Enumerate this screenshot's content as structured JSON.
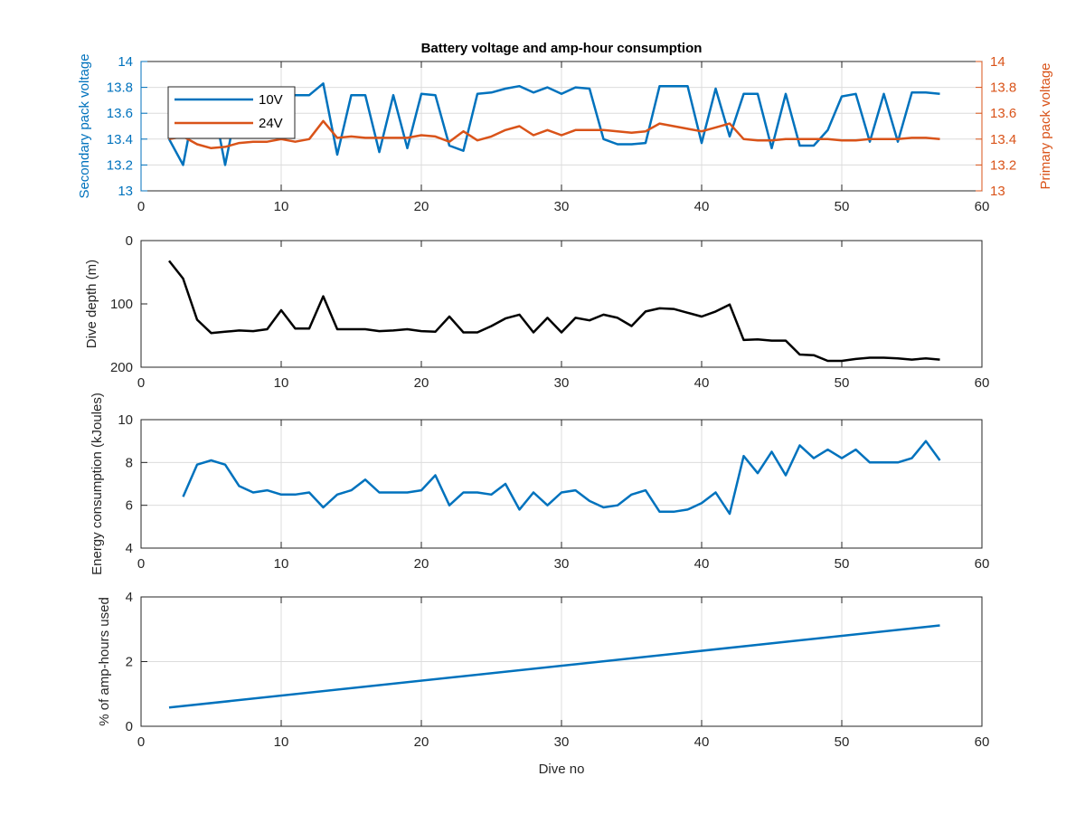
{
  "chart_data": [
    {
      "type": "line",
      "title": "Battery voltage and amp-hour consumption",
      "xlim": [
        0,
        60
      ],
      "x_ticks": [
        0,
        10,
        20,
        30,
        40,
        50,
        60
      ],
      "grid": true,
      "legend": "top-left",
      "y_left": {
        "label": "Secondary pack voltage",
        "lim": [
          13,
          14
        ],
        "ticks": [
          "13",
          "13.2",
          "13.4",
          "13.6",
          "13.8",
          "14"
        ],
        "color": "#0072BD"
      },
      "y_right": {
        "label": "Primary pack voltage",
        "lim": [
          13,
          14
        ],
        "ticks": [
          "13",
          "13.2",
          "13.4",
          "13.6",
          "13.8",
          "14"
        ],
        "color": "#D95319"
      },
      "series": [
        {
          "name": "10V",
          "axis": "left",
          "color": "#0072BD",
          "x": [
            2,
            3,
            4,
            5,
            6,
            7,
            8,
            9,
            10,
            11,
            12,
            13,
            14,
            15,
            16,
            17,
            18,
            19,
            20,
            21,
            22,
            23,
            24,
            25,
            26,
            27,
            28,
            29,
            30,
            31,
            32,
            33,
            34,
            35,
            36,
            37,
            38,
            39,
            40,
            41,
            42,
            43,
            44,
            45,
            46,
            47,
            48,
            49,
            50,
            51,
            52,
            53,
            54,
            55,
            56,
            57
          ],
          "y": [
            13.4,
            13.2,
            13.76,
            13.76,
            13.2,
            13.74,
            13.74,
            13.74,
            13.74,
            13.74,
            13.74,
            13.83,
            13.28,
            13.74,
            13.74,
            13.3,
            13.74,
            13.33,
            13.75,
            13.74,
            13.35,
            13.31,
            13.75,
            13.76,
            13.79,
            13.81,
            13.76,
            13.8,
            13.75,
            13.8,
            13.79,
            13.4,
            13.36,
            13.36,
            13.37,
            13.81,
            13.81,
            13.81,
            13.37,
            13.79,
            13.42,
            13.75,
            13.75,
            13.33,
            13.75,
            13.35,
            13.35,
            13.47,
            13.73,
            13.75,
            13.38,
            13.75,
            13.38,
            13.76,
            13.76,
            13.75
          ]
        },
        {
          "name": "24V",
          "axis": "right",
          "color": "#D95319",
          "x": [
            2,
            3,
            4,
            5,
            6,
            7,
            8,
            9,
            10,
            11,
            12,
            13,
            14,
            15,
            16,
            17,
            18,
            19,
            20,
            21,
            22,
            23,
            24,
            25,
            26,
            27,
            28,
            29,
            30,
            31,
            32,
            33,
            34,
            35,
            36,
            37,
            38,
            39,
            40,
            41,
            42,
            43,
            44,
            45,
            46,
            47,
            48,
            49,
            50,
            51,
            52,
            53,
            54,
            55,
            56,
            57
          ],
          "y": [
            13.4,
            13.42,
            13.36,
            13.33,
            13.34,
            13.37,
            13.38,
            13.38,
            13.4,
            13.38,
            13.4,
            13.54,
            13.41,
            13.42,
            13.41,
            13.41,
            13.41,
            13.41,
            13.43,
            13.42,
            13.38,
            13.46,
            13.39,
            13.42,
            13.47,
            13.5,
            13.43,
            13.47,
            13.43,
            13.47,
            13.47,
            13.47,
            13.46,
            13.45,
            13.46,
            13.52,
            13.5,
            13.48,
            13.46,
            13.49,
            13.52,
            13.4,
            13.39,
            13.39,
            13.4,
            13.4,
            13.4,
            13.4,
            13.39,
            13.39,
            13.4,
            13.4,
            13.4,
            13.41,
            13.41,
            13.4
          ]
        }
      ]
    },
    {
      "type": "line",
      "ylabel": "Dive depth (m)",
      "xlim": [
        0,
        60
      ],
      "x_ticks": [
        0,
        10,
        20,
        30,
        40,
        50,
        60
      ],
      "ylim": [
        0,
        200
      ],
      "y_reversed": true,
      "y_ticks": [
        0,
        100,
        200
      ],
      "grid": false,
      "series": [
        {
          "color": "#000000",
          "x": [
            2,
            3,
            4,
            5,
            6,
            7,
            8,
            9,
            10,
            11,
            12,
            13,
            14,
            15,
            16,
            17,
            18,
            19,
            20,
            21,
            22,
            23,
            24,
            25,
            26,
            27,
            28,
            29,
            30,
            31,
            32,
            33,
            34,
            35,
            36,
            37,
            38,
            39,
            40,
            41,
            42,
            43,
            44,
            45,
            46,
            47,
            48,
            49,
            50,
            51,
            52,
            53,
            54,
            55,
            56,
            57
          ],
          "y": [
            32,
            60,
            125,
            146,
            144,
            142,
            143,
            140,
            110,
            139,
            139,
            88,
            140,
            140,
            140,
            143,
            142,
            140,
            143,
            144,
            120,
            145,
            145,
            135,
            123,
            117,
            145,
            122,
            145,
            122,
            126,
            117,
            122,
            135,
            112,
            107,
            108,
            114,
            120,
            112,
            101,
            157,
            156,
            158,
            158,
            180,
            181,
            190,
            190,
            187,
            185,
            185,
            186,
            188,
            186,
            188
          ]
        }
      ]
    },
    {
      "type": "line",
      "ylabel": "Energy consumption (kJoules)",
      "xlim": [
        0,
        60
      ],
      "x_ticks": [
        0,
        10,
        20,
        30,
        40,
        50,
        60
      ],
      "ylim": [
        4,
        10
      ],
      "y_ticks": [
        4,
        6,
        8,
        10
      ],
      "grid": true,
      "series": [
        {
          "color": "#0072BD",
          "x": [
            3,
            4,
            5,
            6,
            7,
            8,
            9,
            10,
            11,
            12,
            13,
            14,
            15,
            16,
            17,
            18,
            19,
            20,
            21,
            22,
            23,
            24,
            25,
            26,
            27,
            28,
            29,
            30,
            31,
            32,
            33,
            34,
            35,
            36,
            37,
            38,
            39,
            40,
            41,
            42,
            43,
            44,
            45,
            46,
            47,
            48,
            49,
            50,
            51,
            52,
            53,
            54,
            55,
            56,
            57
          ],
          "y": [
            6.4,
            7.9,
            8.1,
            7.9,
            6.9,
            6.6,
            6.7,
            6.5,
            6.5,
            6.6,
            5.9,
            6.5,
            6.7,
            7.2,
            6.6,
            6.6,
            6.6,
            6.7,
            7.4,
            6.0,
            6.6,
            6.6,
            6.5,
            7.0,
            5.8,
            6.6,
            6.0,
            6.6,
            6.7,
            6.2,
            5.9,
            6.0,
            6.5,
            6.7,
            5.7,
            5.7,
            5.8,
            6.1,
            6.6,
            5.6,
            8.3,
            7.5,
            8.5,
            7.4,
            8.8,
            8.2,
            8.6,
            8.2,
            8.6,
            8.0,
            8.0,
            8.0,
            8.2,
            9.0,
            8.1
          ]
        }
      ]
    },
    {
      "type": "line",
      "ylabel": "% of amp-hours used",
      "xlabel": "Dive no",
      "xlim": [
        0,
        60
      ],
      "x_ticks": [
        0,
        10,
        20,
        30,
        40,
        50,
        60
      ],
      "ylim": [
        0,
        4
      ],
      "y_ticks": [
        0,
        2,
        4
      ],
      "grid": true,
      "series": [
        {
          "color": "#0072BD",
          "x": [
            2,
            57
          ],
          "y": [
            0.58,
            3.12
          ]
        }
      ]
    }
  ]
}
